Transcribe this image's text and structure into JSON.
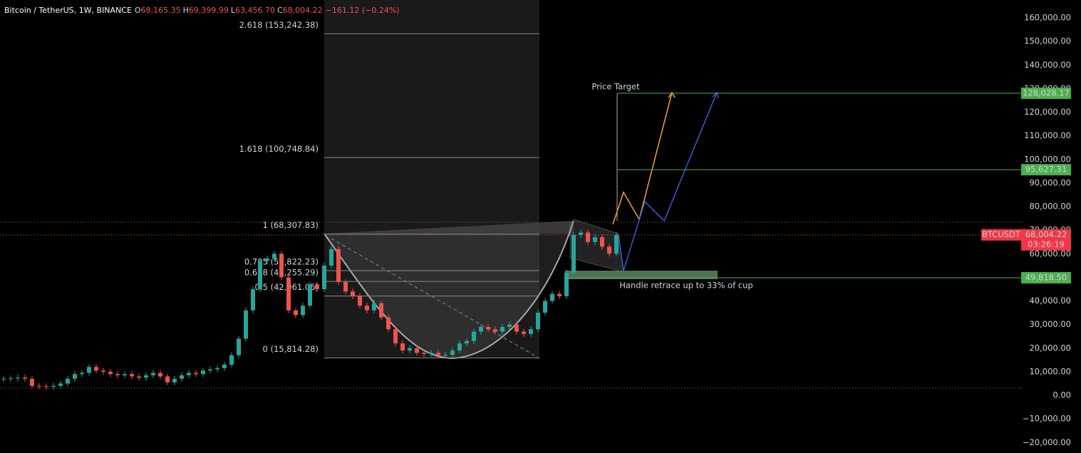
{
  "header": {
    "symbol": "Bitcoin / TetherUS, 1W, BINANCE",
    "ohlc": [
      {
        "key": "O",
        "value": "68,165.35"
      },
      {
        "key": "H",
        "value": "69,399.99"
      },
      {
        "key": "L",
        "value": "63,456.70"
      },
      {
        "key": "C",
        "value": "68,004.22"
      }
    ],
    "change": "−161.12 (−0.24%)"
  },
  "chart_data": {
    "type": "candlestick",
    "values": [
      7000,
      7200,
      7500,
      7000,
      4000,
      3800,
      3600,
      4000,
      5000,
      7000,
      9000,
      9500,
      12000,
      10500,
      10000,
      9000,
      8500,
      9000,
      8000,
      7500,
      8500,
      9500,
      8000,
      5500,
      7000,
      8500,
      9500,
      9000,
      10500,
      11000,
      11500,
      13000,
      17000,
      24000,
      36000,
      45000,
      57000,
      58000,
      60000,
      50000,
      36000,
      34000,
      38000,
      47000,
      45000,
      55000,
      62000,
      48000,
      44000,
      42000,
      38000,
      36000,
      39000,
      33000,
      28000,
      22000,
      19000,
      20000,
      18000,
      17500,
      18000,
      17000,
      17200,
      19000,
      22000,
      23000,
      27000,
      29000,
      28000,
      27000,
      29000,
      30000,
      27000,
      26000,
      28000,
      35000,
      40000,
      43000,
      42000,
      52000,
      68000,
      69000,
      65000,
      67000,
      63000,
      60000,
      68000
    ],
    "up_color": "#26a69a",
    "down_color": "#ef5350",
    "ylim": [
      -20000,
      160000
    ],
    "yticks": [
      {
        "value": 160000,
        "label": "160,000.00"
      },
      {
        "value": 150000,
        "label": "150,000.00"
      },
      {
        "value": 140000,
        "label": "140,000.00"
      },
      {
        "value": 130000,
        "label": "130,000.00"
      },
      {
        "value": 120000,
        "label": "120,000.00"
      },
      {
        "value": 110000,
        "label": "110,000.00"
      },
      {
        "value": 100000,
        "label": "100,000.00"
      },
      {
        "value": 90000,
        "label": "90,000.00"
      },
      {
        "value": 80000,
        "label": "80,000.00"
      },
      {
        "value": 70000,
        "label": "70,000.00"
      },
      {
        "value": 60000,
        "label": "60,000.00"
      },
      {
        "value": 50000,
        "label": "50,000.00"
      },
      {
        "value": 40000,
        "label": "40,000.00"
      },
      {
        "value": 30000,
        "label": "30,000.00"
      },
      {
        "value": 20000,
        "label": "20,000.00"
      },
      {
        "value": 10000,
        "label": "10,000.00"
      },
      {
        "value": 0,
        "label": "0.00"
      },
      {
        "value": -10000,
        "label": "−10,000.00"
      },
      {
        "value": -20000,
        "label": "−20,000.00"
      }
    ],
    "fib_levels": [
      {
        "value": 153242.38,
        "label": "2.618 (153,242.38)"
      },
      {
        "value": 100748.84,
        "label": "1.618 (100,748.84)"
      },
      {
        "value": 68307.83,
        "label": "1 (68,307.83)"
      },
      {
        "value": 52822.23,
        "label": "0.705 (52,822.23)"
      },
      {
        "value": 48255.29,
        "label": "0.618 (48,255.29)"
      },
      {
        "value": 42061.05,
        "label": "0.5 (42,061.05)"
      },
      {
        "value": 15814.28,
        "label": "0 (15,814.28)"
      }
    ],
    "price_levels": [
      {
        "value": 128028.17,
        "label": "128,028.17"
      },
      {
        "value": 95627.31,
        "label": "95,627.31"
      },
      {
        "value": 49818.5,
        "label": "49,818.50"
      }
    ],
    "last_price": {
      "value": 68004.22,
      "label": "68,004.22",
      "symbol": "BTCUSDT",
      "countdown": "03:26:19"
    },
    "annotations": [
      "Price Target",
      "Handle retrace up to 33% of cup"
    ]
  }
}
